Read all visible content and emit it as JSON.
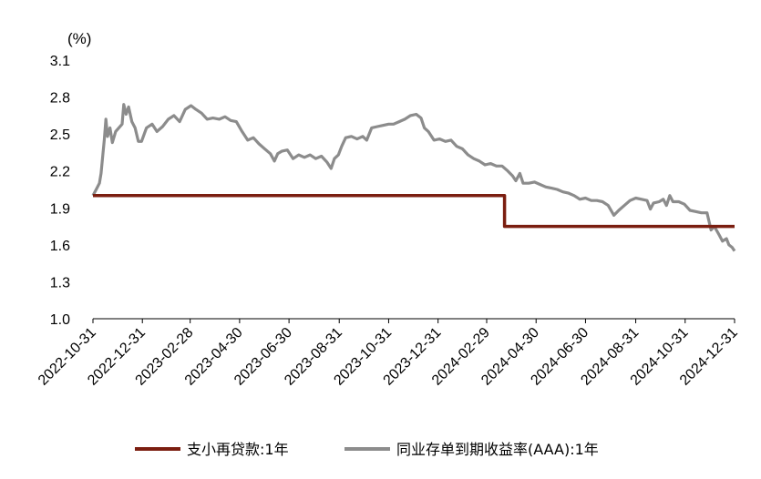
{
  "chart_data": {
    "type": "line",
    "title": "",
    "xlabel": "",
    "ylabel": "(%)",
    "ylim": [
      1.0,
      3.1
    ],
    "yticks": [
      "1.0",
      "1.3",
      "1.6",
      "1.9",
      "2.2",
      "2.5",
      "2.8",
      "3.1"
    ],
    "xlim": [
      "2022-10-31",
      "2024-12-31"
    ],
    "xticks": [
      "2022-10-31",
      "2022-12-31",
      "2023-02-28",
      "2023-04-30",
      "2023-06-30",
      "2023-08-31",
      "2023-10-31",
      "2023-12-31",
      "2024-02-29",
      "2024-04-30",
      "2024-06-30",
      "2024-08-31",
      "2024-10-31",
      "2024-12-31"
    ],
    "grid": false,
    "legend": "bottom",
    "series": [
      {
        "name": "支小再贷款:1年",
        "color": "#7B1E10",
        "shape": "step",
        "points": [
          [
            "2022-10-31",
            2.0
          ],
          [
            "2024-03-22",
            2.0
          ],
          [
            "2024-03-22",
            1.75
          ],
          [
            "2024-12-31",
            1.75
          ]
        ]
      },
      {
        "name": "同业存单到期收益率(AAA):1年",
        "color": "#8C8C8C",
        "shape": "line",
        "points": [
          [
            "2022-10-31",
            2.0
          ],
          [
            "2022-11-04",
            2.05
          ],
          [
            "2022-11-08",
            2.1
          ],
          [
            "2022-11-10",
            2.18
          ],
          [
            "2022-11-12",
            2.32
          ],
          [
            "2022-11-14",
            2.45
          ],
          [
            "2022-11-16",
            2.62
          ],
          [
            "2022-11-18",
            2.48
          ],
          [
            "2022-11-21",
            2.55
          ],
          [
            "2022-11-24",
            2.43
          ],
          [
            "2022-11-28",
            2.52
          ],
          [
            "2022-12-02",
            2.55
          ],
          [
            "2022-12-06",
            2.58
          ],
          [
            "2022-12-08",
            2.74
          ],
          [
            "2022-12-11",
            2.66
          ],
          [
            "2022-12-14",
            2.72
          ],
          [
            "2022-12-18",
            2.6
          ],
          [
            "2022-12-22",
            2.55
          ],
          [
            "2022-12-26",
            2.44
          ],
          [
            "2022-12-30",
            2.44
          ],
          [
            "2023-01-05",
            2.55
          ],
          [
            "2023-01-12",
            2.58
          ],
          [
            "2023-01-18",
            2.52
          ],
          [
            "2023-01-25",
            2.56
          ],
          [
            "2023-02-01",
            2.62
          ],
          [
            "2023-02-08",
            2.65
          ],
          [
            "2023-02-15",
            2.6
          ],
          [
            "2023-02-22",
            2.7
          ],
          [
            "2023-03-01",
            2.73
          ],
          [
            "2023-03-07",
            2.7
          ],
          [
            "2023-03-14",
            2.67
          ],
          [
            "2023-03-21",
            2.62
          ],
          [
            "2023-03-28",
            2.63
          ],
          [
            "2023-04-05",
            2.62
          ],
          [
            "2023-04-12",
            2.64
          ],
          [
            "2023-04-19",
            2.61
          ],
          [
            "2023-04-26",
            2.6
          ],
          [
            "2023-05-03",
            2.52
          ],
          [
            "2023-05-10",
            2.45
          ],
          [
            "2023-05-17",
            2.47
          ],
          [
            "2023-05-24",
            2.42
          ],
          [
            "2023-05-31",
            2.38
          ],
          [
            "2023-06-07",
            2.34
          ],
          [
            "2023-06-12",
            2.28
          ],
          [
            "2023-06-16",
            2.34
          ],
          [
            "2023-06-21",
            2.36
          ],
          [
            "2023-06-28",
            2.37
          ],
          [
            "2023-07-05",
            2.3
          ],
          [
            "2023-07-12",
            2.33
          ],
          [
            "2023-07-19",
            2.31
          ],
          [
            "2023-07-26",
            2.33
          ],
          [
            "2023-08-02",
            2.3
          ],
          [
            "2023-08-09",
            2.32
          ],
          [
            "2023-08-16",
            2.27
          ],
          [
            "2023-08-21",
            2.22
          ],
          [
            "2023-08-25",
            2.3
          ],
          [
            "2023-08-30",
            2.33
          ],
          [
            "2023-09-03",
            2.4
          ],
          [
            "2023-09-08",
            2.47
          ],
          [
            "2023-09-15",
            2.48
          ],
          [
            "2023-09-22",
            2.46
          ],
          [
            "2023-09-29",
            2.48
          ],
          [
            "2023-10-04",
            2.45
          ],
          [
            "2023-10-10",
            2.55
          ],
          [
            "2023-10-17",
            2.56
          ],
          [
            "2023-10-24",
            2.57
          ],
          [
            "2023-10-31",
            2.58
          ],
          [
            "2023-11-06",
            2.58
          ],
          [
            "2023-11-13",
            2.6
          ],
          [
            "2023-11-20",
            2.62
          ],
          [
            "2023-11-27",
            2.65
          ],
          [
            "2023-12-04",
            2.66
          ],
          [
            "2023-12-10",
            2.63
          ],
          [
            "2023-12-14",
            2.55
          ],
          [
            "2023-12-19",
            2.52
          ],
          [
            "2023-12-26",
            2.45
          ],
          [
            "2024-01-02",
            2.46
          ],
          [
            "2024-01-09",
            2.44
          ],
          [
            "2024-01-16",
            2.45
          ],
          [
            "2024-01-23",
            2.4
          ],
          [
            "2024-01-30",
            2.38
          ],
          [
            "2024-02-06",
            2.33
          ],
          [
            "2024-02-13",
            2.3
          ],
          [
            "2024-02-20",
            2.28
          ],
          [
            "2024-02-27",
            2.25
          ],
          [
            "2024-03-05",
            2.26
          ],
          [
            "2024-03-12",
            2.24
          ],
          [
            "2024-03-19",
            2.24
          ],
          [
            "2024-03-26",
            2.2
          ],
          [
            "2024-04-01",
            2.16
          ],
          [
            "2024-04-05",
            2.12
          ],
          [
            "2024-04-10",
            2.18
          ],
          [
            "2024-04-14",
            2.1
          ],
          [
            "2024-04-21",
            2.1
          ],
          [
            "2024-04-28",
            2.11
          ],
          [
            "2024-05-05",
            2.09
          ],
          [
            "2024-05-12",
            2.07
          ],
          [
            "2024-05-19",
            2.06
          ],
          [
            "2024-05-26",
            2.05
          ],
          [
            "2024-06-02",
            2.03
          ],
          [
            "2024-06-09",
            2.02
          ],
          [
            "2024-06-16",
            2.0
          ],
          [
            "2024-06-23",
            1.97
          ],
          [
            "2024-06-30",
            1.98
          ],
          [
            "2024-07-07",
            1.96
          ],
          [
            "2024-07-14",
            1.96
          ],
          [
            "2024-07-21",
            1.95
          ],
          [
            "2024-07-28",
            1.92
          ],
          [
            "2024-08-04",
            1.84
          ],
          [
            "2024-08-10",
            1.88
          ],
          [
            "2024-08-17",
            1.92
          ],
          [
            "2024-08-24",
            1.96
          ],
          [
            "2024-08-31",
            1.98
          ],
          [
            "2024-09-07",
            1.97
          ],
          [
            "2024-09-14",
            1.96
          ],
          [
            "2024-09-18",
            1.89
          ],
          [
            "2024-09-22",
            1.94
          ],
          [
            "2024-09-29",
            1.95
          ],
          [
            "2024-10-04",
            1.97
          ],
          [
            "2024-10-08",
            1.92
          ],
          [
            "2024-10-12",
            2.0
          ],
          [
            "2024-10-16",
            1.95
          ],
          [
            "2024-10-23",
            1.95
          ],
          [
            "2024-10-30",
            1.93
          ],
          [
            "2024-11-06",
            1.88
          ],
          [
            "2024-11-13",
            1.87
          ],
          [
            "2024-11-20",
            1.86
          ],
          [
            "2024-11-27",
            1.86
          ],
          [
            "2024-12-02",
            1.72
          ],
          [
            "2024-12-06",
            1.75
          ],
          [
            "2024-12-12",
            1.68
          ],
          [
            "2024-12-16",
            1.63
          ],
          [
            "2024-12-21",
            1.65
          ],
          [
            "2024-12-24",
            1.6
          ],
          [
            "2024-12-28",
            1.58
          ],
          [
            "2024-12-31",
            1.55
          ]
        ]
      }
    ]
  }
}
